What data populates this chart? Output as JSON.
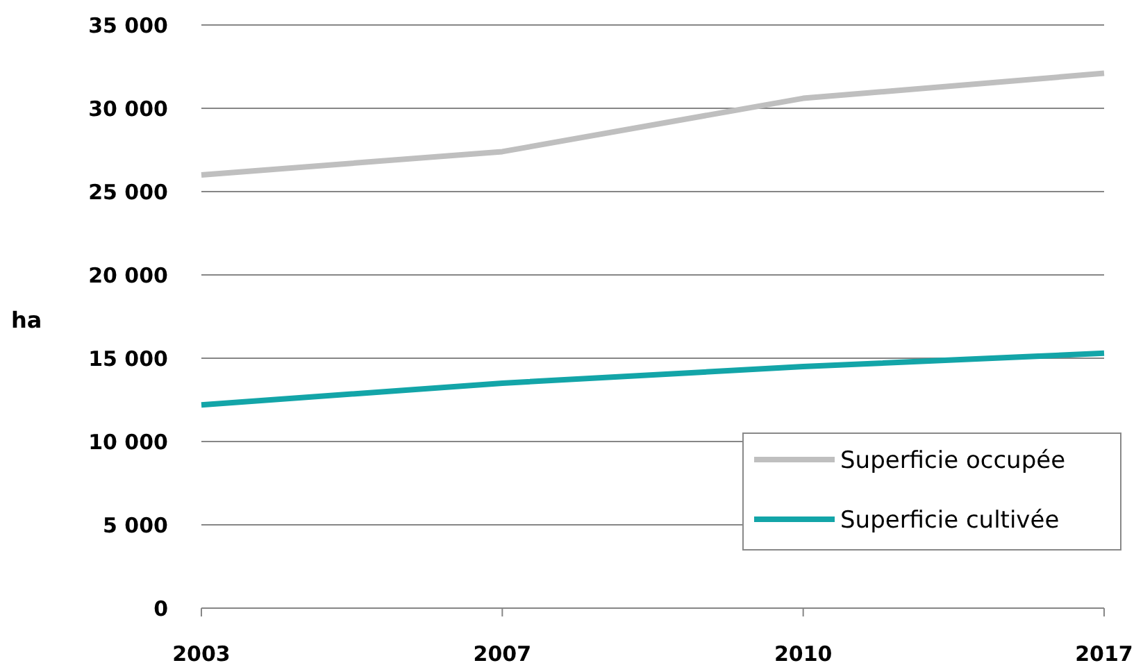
{
  "chart_data": {
    "type": "line",
    "ylabel": "ha",
    "categories": [
      "2003",
      "2007",
      "2010",
      "2017"
    ],
    "series": [
      {
        "name": "Superficie occupée",
        "color": "#bfbfbf",
        "values": [
          26000,
          27400,
          30600,
          32100
        ]
      },
      {
        "name": "Superficie cultivée",
        "color": "#13a5a8",
        "values": [
          12200,
          13500,
          14500,
          15300
        ]
      }
    ],
    "ylim": [
      0,
      35000
    ],
    "yticks": [
      {
        "value": 0,
        "label": "0"
      },
      {
        "value": 5000,
        "label": "5 000"
      },
      {
        "value": 10000,
        "label": "10 000"
      },
      {
        "value": 15000,
        "label": "15 000"
      },
      {
        "value": 20000,
        "label": "20 000"
      },
      {
        "value": 25000,
        "label": "25 000"
      },
      {
        "value": 30000,
        "label": "30 000"
      },
      {
        "value": 35000,
        "label": "35 000"
      }
    ],
    "grid": "y",
    "legend": "bottom right",
    "marker": "none",
    "line_style": "solid"
  }
}
